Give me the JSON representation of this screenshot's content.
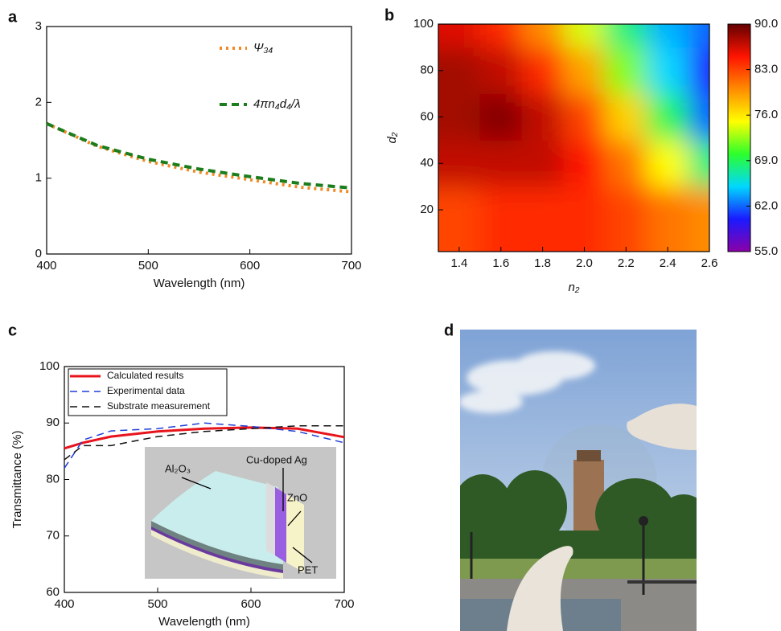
{
  "panels": [
    "a",
    "b",
    "c",
    "d"
  ],
  "chart_data": [
    {
      "type": "line",
      "x": [
        400,
        450,
        500,
        550,
        600,
        650,
        700
      ],
      "series": [
        {
          "name": "Ψ₃₄",
          "color": "#f08a24",
          "line_style": "dotted",
          "values": [
            1.72,
            1.42,
            1.22,
            1.08,
            0.98,
            0.88,
            0.82
          ]
        },
        {
          "name": "4πn₄d₄/λ",
          "color": "#1b7d1b",
          "line_style": "dashed",
          "values": [
            1.72,
            1.43,
            1.25,
            1.12,
            1.02,
            0.93,
            0.87
          ]
        }
      ],
      "xlim": [
        400,
        700
      ],
      "xticks": [
        400,
        500,
        600,
        700
      ],
      "ylim": [
        0,
        3
      ],
      "yticks": [
        0,
        1,
        2,
        3
      ],
      "x_label": "Wavelength (nm)",
      "legend": "upper right"
    },
    {
      "type": "heatmap",
      "x": [
        1.4,
        1.6,
        1.8,
        2.0,
        2.2,
        2.4,
        2.6
      ],
      "y": [
        20,
        40,
        60,
        80,
        100
      ],
      "z": [
        [
          83,
          84,
          84,
          84,
          83,
          81,
          80
        ],
        [
          87,
          87,
          87,
          85,
          81,
          75,
          68
        ],
        [
          88,
          89,
          87,
          83,
          77,
          69,
          62
        ],
        [
          88,
          87,
          84,
          79,
          72,
          65,
          60
        ],
        [
          86,
          84,
          80,
          74,
          68,
          64,
          62
        ]
      ],
      "xlim": [
        1.3,
        2.6
      ],
      "xticks": [
        1.4,
        1.6,
        1.8,
        {
          "value": 2,
          "label": "2.0"
        },
        2.2,
        2.4,
        2.6
      ],
      "ylim": [
        2,
        100
      ],
      "yticks": [
        20,
        40,
        60,
        80,
        100
      ],
      "x_label": "n₂",
      "y_label": "d₂",
      "clim": [
        55,
        90
      ],
      "cticks": [
        {
          "value": 55,
          "label": "55.0"
        },
        {
          "value": 62,
          "label": "62.0"
        },
        {
          "value": 69,
          "label": "69.0"
        },
        {
          "value": 76,
          "label": "76.0"
        },
        {
          "value": 83,
          "label": "83.0"
        },
        {
          "value": 90,
          "label": "90.0"
        }
      ],
      "colormap": [
        "#8b00a8",
        "#1a1aff",
        "#00d8ff",
        "#2cff2c",
        "#ffff00",
        "#ff8c00",
        "#ff1400",
        "#640000"
      ]
    },
    {
      "type": "line",
      "x": [
        400,
        420,
        450,
        500,
        550,
        600,
        650,
        700
      ],
      "series": [
        {
          "name": "Calculated results",
          "color": "#e8141c",
          "line_style": "solid",
          "values": [
            85.5,
            86.5,
            87.6,
            88.5,
            89.0,
            89.2,
            89.0,
            87.5
          ]
        },
        {
          "name": "Experimental data",
          "color": "#1f3fd8",
          "line_style": "dashed",
          "values": [
            82.0,
            87.0,
            88.6,
            89.0,
            90.0,
            89.4,
            88.5,
            86.5
          ]
        },
        {
          "name": "Substrate measurement",
          "color": "#111111",
          "line_style": "dashed",
          "values": [
            83.5,
            86.0,
            86.0,
            87.6,
            88.5,
            89.0,
            89.5,
            89.5
          ]
        }
      ],
      "xlim": [
        400,
        700
      ],
      "xticks": [
        400,
        500,
        600,
        700
      ],
      "ylim": [
        60,
        100
      ],
      "yticks": [
        60,
        70,
        80,
        90,
        100
      ],
      "x_label": "Wavelength (nm)",
      "y_label": "Transmittance (%)",
      "legend": "upper left",
      "inset_labels": [
        "Al₂O₃",
        "Cu-doped Ag",
        "ZnO",
        "PET"
      ]
    }
  ]
}
